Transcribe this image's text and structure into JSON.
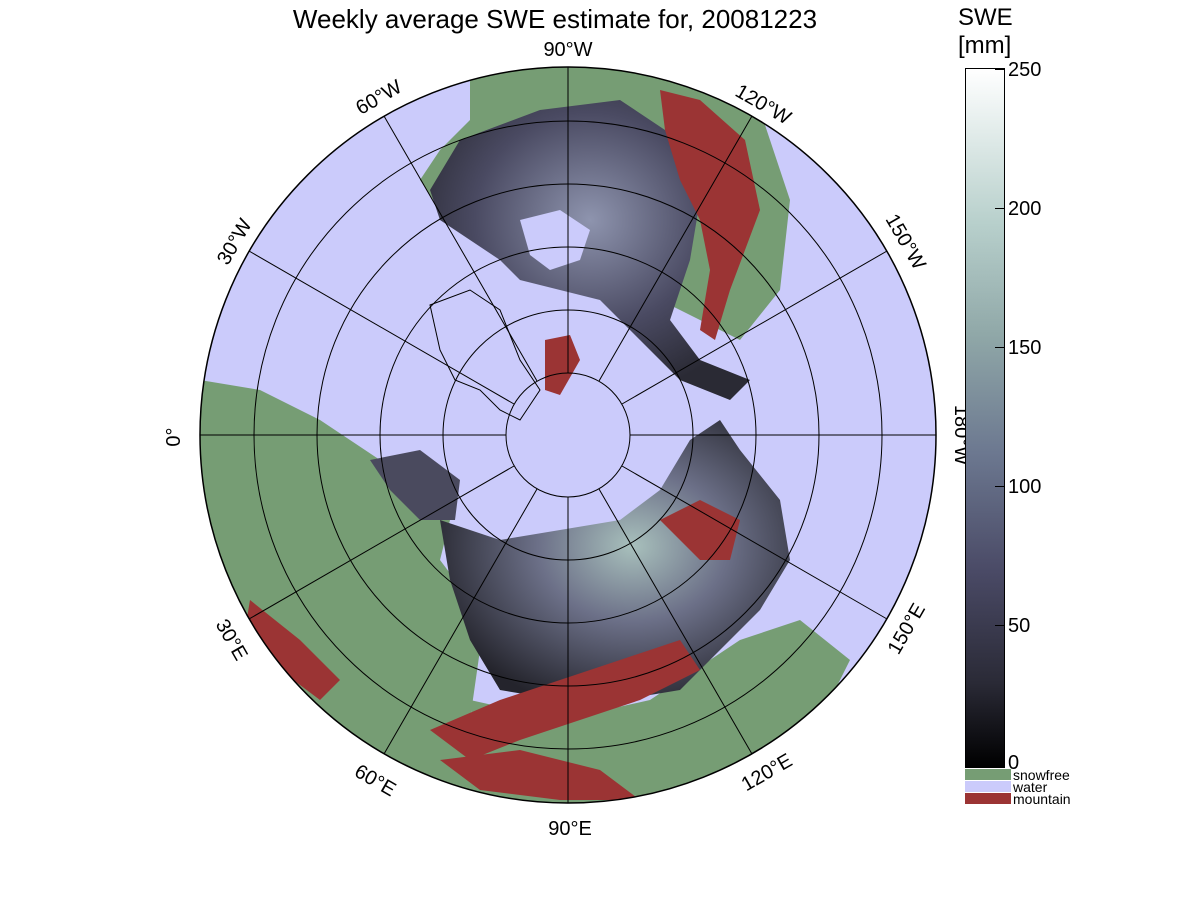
{
  "title": "Weekly average SWE estimate for, 20081223",
  "colorbar": {
    "label_line1": "SWE",
    "label_line2": "[mm]",
    "ticks": [
      "250",
      "200",
      "150",
      "100",
      "50",
      "0"
    ],
    "range": [
      0,
      250
    ]
  },
  "categories": [
    {
      "label": "snowfree",
      "color": "#769d74"
    },
    {
      "label": "water",
      "color": "#cbcbfb"
    },
    {
      "label": "mountain",
      "color": "#9b3434"
    }
  ],
  "meridian_labels": [
    "90°W",
    "120°W",
    "150°W",
    "180°W",
    "150°E",
    "120°E",
    "90°E",
    "60°E",
    "30°E",
    "0°",
    "30°W",
    "60°W"
  ]
}
